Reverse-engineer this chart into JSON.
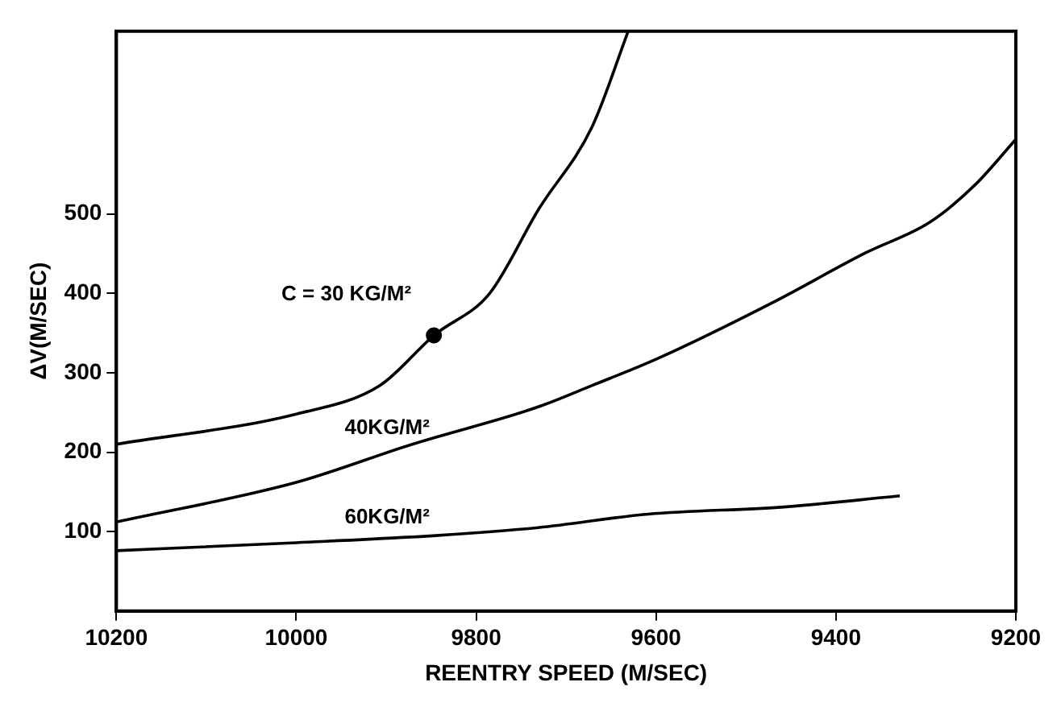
{
  "chart_data": {
    "type": "line",
    "xlabel": "REENTRY SPEED (M/SEC)",
    "ylabel": "ΔV(M/SEC)",
    "xlim": [
      10200,
      9200
    ],
    "xticks": [
      10200,
      10000,
      9800,
      9600,
      9400,
      9200
    ],
    "ylim": [
      0,
      730
    ],
    "yticks": [
      100,
      200,
      300,
      400,
      500
    ],
    "grid": false,
    "legend": false,
    "marker": "none",
    "line_style": "solid",
    "series": [
      {
        "name": "C = 30 KG/M²",
        "color": "#000000",
        "x": [
          10200,
          10000,
          9907,
          9847,
          9785,
          9731,
          9671,
          9631
        ],
        "values": [
          210,
          248,
          284,
          347,
          400,
          505,
          610,
          730
        ]
      },
      {
        "name": "40KG/M²",
        "color": "#000000",
        "x": [
          10200,
          10000,
          9871,
          9731,
          9671,
          9598,
          9471,
          9367,
          9295,
          9245,
          9200
        ],
        "values": [
          112,
          162,
          210,
          257,
          284,
          318,
          388,
          451,
          490,
          537,
          594
        ]
      },
      {
        "name": "60KG/M²",
        "color": "#000000",
        "x": [
          10200,
          10000,
          9845,
          9731,
          9609,
          9458,
          9329
        ],
        "values": [
          76,
          86,
          95,
          105,
          122,
          131,
          145
        ]
      },
      {
        "type": "scatter",
        "marker": "circle",
        "color": "#000000",
        "x": [
          9847
        ],
        "values": [
          347
        ]
      }
    ]
  }
}
